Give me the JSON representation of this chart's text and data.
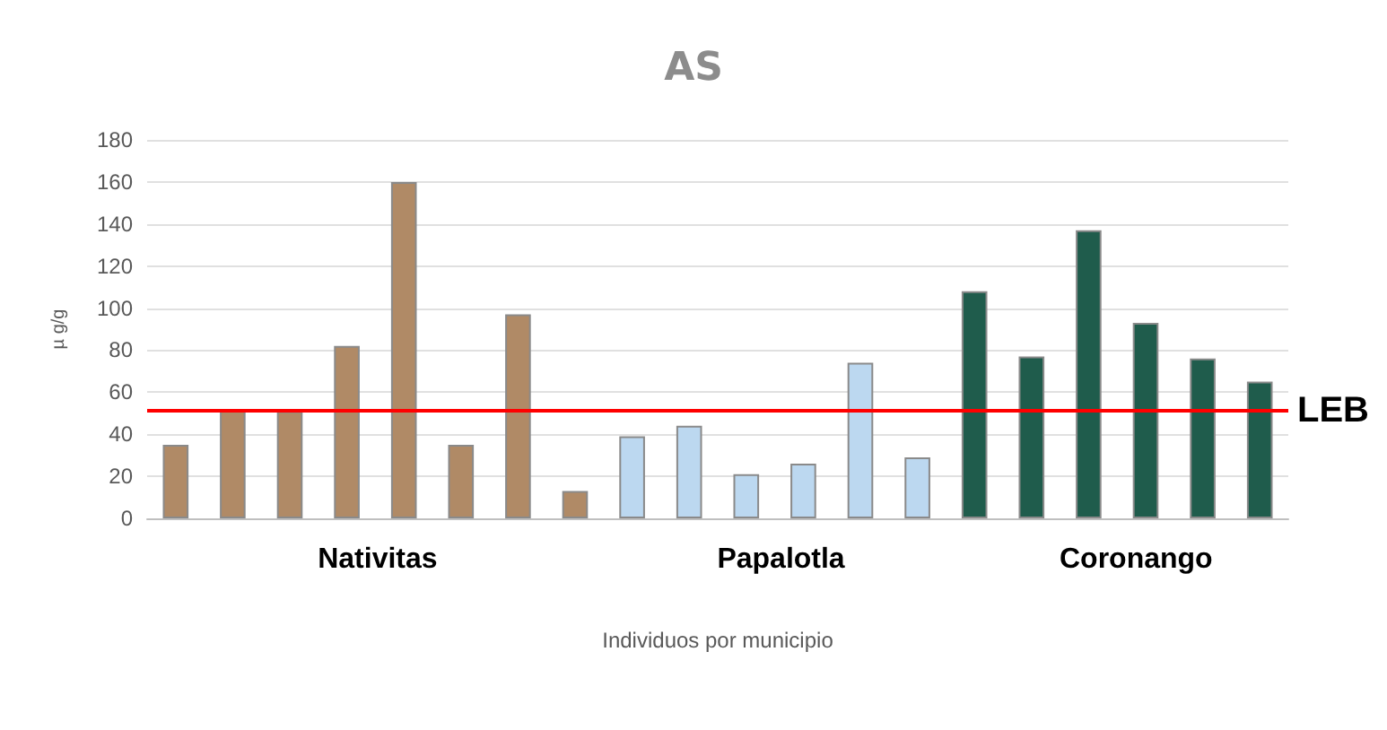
{
  "chart_data": {
    "type": "bar",
    "title": "AS",
    "xlabel": "Individuos por municipio",
    "ylabel": "µ g/g",
    "categories": [
      null,
      null,
      null,
      null,
      null,
      null,
      null,
      null,
      null,
      null,
      null,
      null,
      null,
      null,
      null,
      null,
      null,
      null,
      null,
      null
    ],
    "series": [
      {
        "name": "Nativitas",
        "color": "#b08a66",
        "values": [
          35,
          52,
          51,
          82,
          160,
          35,
          97,
          13,
          null,
          null,
          null,
          null,
          null,
          null,
          null,
          null,
          null,
          null,
          null,
          null
        ]
      },
      {
        "name": "Papalotla",
        "color": "#bcd8f0",
        "values": [
          null,
          null,
          null,
          null,
          null,
          null,
          null,
          null,
          39,
          44,
          21,
          26,
          74,
          29,
          null,
          null,
          null,
          null,
          null,
          null
        ]
      },
      {
        "name": "Coronango",
        "color": "#1f5c4c",
        "values": [
          null,
          null,
          null,
          null,
          null,
          null,
          null,
          null,
          null,
          null,
          null,
          null,
          null,
          null,
          108,
          77,
          137,
          93,
          76,
          65
        ]
      }
    ],
    "ylim": [
      0,
      180
    ],
    "yticks": [
      0,
      20,
      40,
      60,
      80,
      100,
      120,
      140,
      160,
      180
    ],
    "grid": "y",
    "legend": false,
    "ref_lines": [
      {
        "axis": "y",
        "value": 51,
        "label": "LEB",
        "color": "#ff0000"
      }
    ]
  }
}
